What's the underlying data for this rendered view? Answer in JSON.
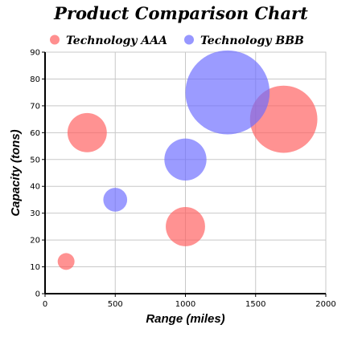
{
  "chart_data": {
    "type": "bubble",
    "title": "Product Comparison Chart",
    "xlabel": "Range (miles)",
    "ylabel": "Capacity (tons)",
    "xlim": [
      0,
      2000
    ],
    "ylim": [
      0,
      90
    ],
    "x_ticks": [
      0,
      500,
      1000,
      1500,
      2000
    ],
    "y_ticks": [
      0,
      10,
      20,
      30,
      40,
      50,
      60,
      70,
      80,
      90
    ],
    "grid": true,
    "legend_position": "top",
    "series": [
      {
        "name": "Technology AAA",
        "color": "#ff5f5f",
        "points": [
          {
            "x": 150,
            "y": 12,
            "size": 120
          },
          {
            "x": 300,
            "y": 60,
            "size": 280
          },
          {
            "x": 1000,
            "y": 25,
            "size": 280
          },
          {
            "x": 1700,
            "y": 65,
            "size": 480
          }
        ]
      },
      {
        "name": "Technology BBB",
        "color": "#6b6bff",
        "points": [
          {
            "x": 500,
            "y": 35,
            "size": 170
          },
          {
            "x": 1000,
            "y": 50,
            "size": 300
          },
          {
            "x": 1300,
            "y": 75,
            "size": 600
          }
        ]
      }
    ]
  }
}
